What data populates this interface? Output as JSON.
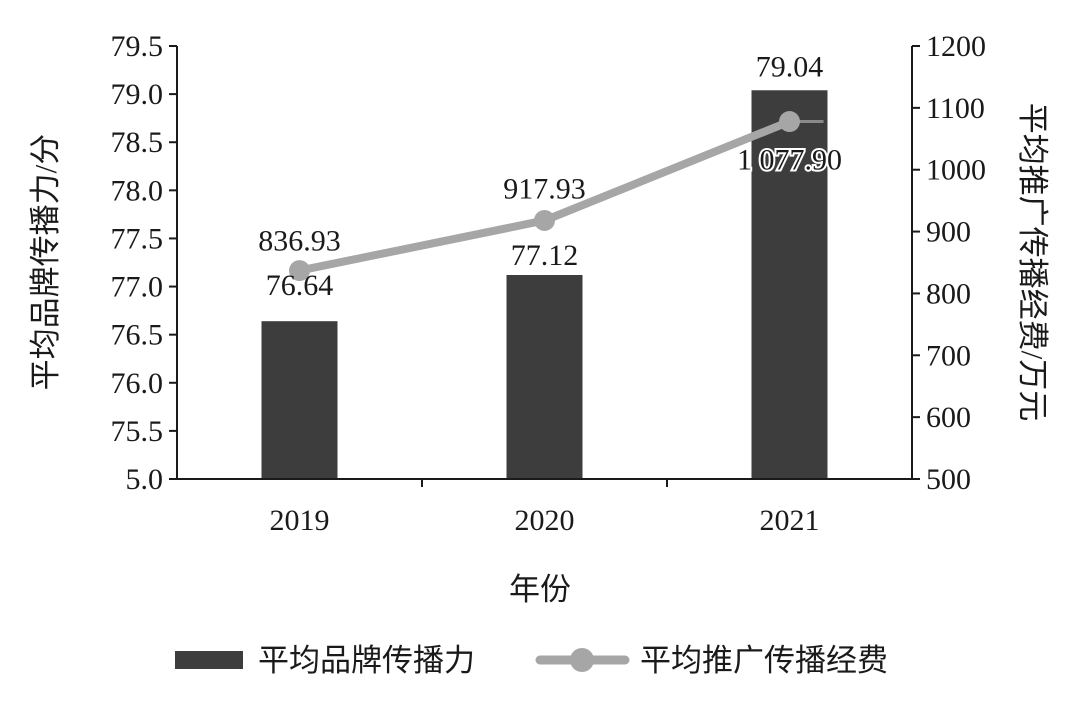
{
  "chart_data": {
    "type": "bar",
    "categories": [
      "2019",
      "2020",
      "2021"
    ],
    "xlabel": "年份",
    "ylabel_left": "平均品牌传播力/分",
    "ylabel_right": "平均推广传播经费/万元",
    "left_axis": {
      "ticks": [
        "5.0",
        "75.5",
        "76.0",
        "76.5",
        "77.0",
        "77.5",
        "78.0",
        "78.5",
        "79.0",
        "79.5"
      ],
      "broken_axis": true
    },
    "right_axis": {
      "ylim": [
        500,
        1200
      ],
      "ticks": [
        "500",
        "600",
        "700",
        "800",
        "900",
        "1000",
        "1100",
        "1200"
      ]
    },
    "series": [
      {
        "name": "平均品牌传播力",
        "kind": "bar",
        "axis": "left",
        "values": [
          76.64,
          77.12,
          79.04
        ],
        "labels": [
          "76.64",
          "77.12",
          "79.04"
        ],
        "color": "#3d3d3d"
      },
      {
        "name": "平均推广传播经费",
        "kind": "line",
        "axis": "right",
        "values": [
          836.93,
          917.93,
          1077.9
        ],
        "labels": [
          "836.93",
          "917.93",
          "1 077.90"
        ],
        "color": "#a6a6a6"
      }
    ],
    "legend": "bottom",
    "grid": false
  }
}
